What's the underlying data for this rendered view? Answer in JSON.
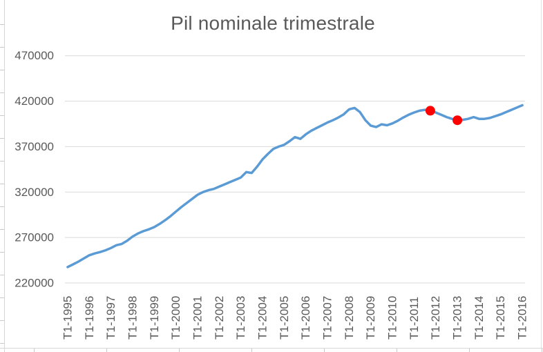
{
  "chart_data": {
    "type": "line",
    "title": "Pil nominale trimestrale",
    "xlabel": "",
    "ylabel": "",
    "frequency": "quarterly",
    "x_start": "T1-1995",
    "x_end": "T1-2016",
    "x_tick_labels": [
      "T1-1995",
      "T1-1996",
      "T1-1997",
      "T1-1998",
      "T1-1999",
      "T1-2000",
      "T1-2001",
      "T1-2002",
      "T1-2003",
      "T1-2004",
      "T1-2005",
      "T1-2006",
      "T1-2007",
      "T1-2008",
      "T1-2009",
      "T1-2010",
      "T1-2011",
      "T1-2012",
      "T1-2013",
      "T1-2014",
      "T1-2015",
      "T1-2016"
    ],
    "x_ticks_every_n_points": 4,
    "y_ticks": [
      220000,
      270000,
      320000,
      370000,
      420000,
      470000
    ],
    "ylim": [
      220000,
      470000
    ],
    "grid": "horizontal",
    "legend": "none",
    "line_color": "#5b9bd5",
    "grid_color": "#d9d9d9",
    "text_color": "#595959",
    "marker_color": "#ff0000",
    "series": [
      {
        "name": "Pil nominale trimestrale",
        "values": [
          237500,
          240500,
          243500,
          247000,
          250500,
          252500,
          254000,
          256000,
          258500,
          261500,
          263000,
          266500,
          271000,
          274500,
          277000,
          279000,
          281500,
          285000,
          289000,
          293500,
          298500,
          303500,
          308000,
          312500,
          317000,
          320000,
          322000,
          323500,
          326000,
          328500,
          331000,
          333500,
          336000,
          342000,
          341000,
          348000,
          356000,
          362000,
          367500,
          370000,
          372000,
          376000,
          380500,
          378500,
          383500,
          387500,
          390500,
          393500,
          396500,
          399000,
          402000,
          405500,
          411000,
          412500,
          408000,
          399000,
          393000,
          391500,
          394500,
          393500,
          395500,
          398500,
          402000,
          405000,
          407500,
          409500,
          410500,
          409500,
          407500,
          405000,
          402500,
          400500,
          399000,
          399500,
          400500,
          402500,
          400500,
          400500,
          401500,
          403500,
          405500,
          408000,
          410500,
          413000,
          415500
        ]
      }
    ],
    "markers": [
      {
        "quarter": "T4-2011",
        "index": 67,
        "value": 409500
      },
      {
        "quarter": "T1-2013",
        "index": 72,
        "value": 399000
      }
    ]
  }
}
